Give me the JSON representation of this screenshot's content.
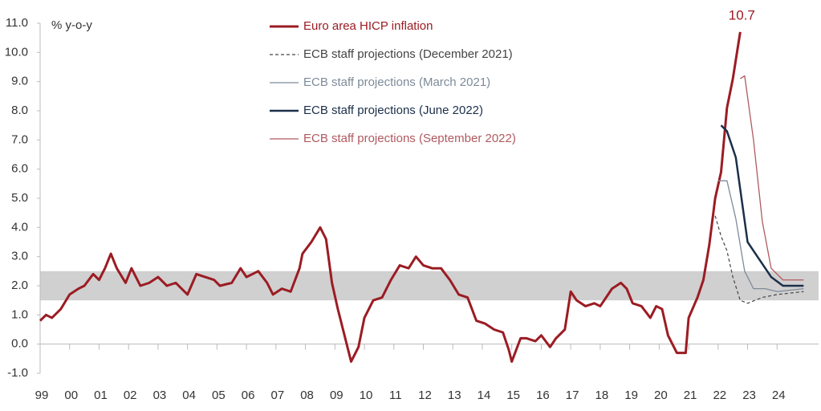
{
  "chart_data": {
    "type": "line",
    "y_label": "% y-o-y",
    "xlim": [
      1999,
      2025
    ],
    "ylim": [
      -1,
      11
    ],
    "xticks": [
      {
        "value": 1999,
        "label": "99"
      },
      {
        "value": 2000,
        "label": "00"
      },
      {
        "value": 2001,
        "label": "01"
      },
      {
        "value": 2002,
        "label": "02"
      },
      {
        "value": 2003,
        "label": "03"
      },
      {
        "value": 2004,
        "label": "04"
      },
      {
        "value": 2005,
        "label": "05"
      },
      {
        "value": 2006,
        "label": "06"
      },
      {
        "value": 2007,
        "label": "07"
      },
      {
        "value": 2008,
        "label": "08"
      },
      {
        "value": 2009,
        "label": "09"
      },
      {
        "value": 2010,
        "label": "10"
      },
      {
        "value": 2011,
        "label": "11"
      },
      {
        "value": 2012,
        "label": "12"
      },
      {
        "value": 2013,
        "label": "13"
      },
      {
        "value": 2014,
        "label": "14"
      },
      {
        "value": 2015,
        "label": "15"
      },
      {
        "value": 2016,
        "label": "16"
      },
      {
        "value": 2017,
        "label": "17"
      },
      {
        "value": 2018,
        "label": "18"
      },
      {
        "value": 2019,
        "label": "19"
      },
      {
        "value": 2020,
        "label": "20"
      },
      {
        "value": 2021,
        "label": "21"
      },
      {
        "value": 2022,
        "label": "22"
      },
      {
        "value": 2023,
        "label": "23"
      },
      {
        "value": 2024,
        "label": "24"
      }
    ],
    "yticks": [
      {
        "value": -1,
        "label": "-1.0"
      },
      {
        "value": 0,
        "label": "0.0"
      },
      {
        "value": 1,
        "label": "1.0"
      },
      {
        "value": 2,
        "label": "2.0"
      },
      {
        "value": 3,
        "label": "3.0"
      },
      {
        "value": 4,
        "label": "4.0"
      },
      {
        "value": 5,
        "label": "5.0"
      },
      {
        "value": 6,
        "label": "6.0"
      },
      {
        "value": 7,
        "label": "7.0"
      },
      {
        "value": 8,
        "label": "8.0"
      },
      {
        "value": 9,
        "label": "9.0"
      },
      {
        "value": 10,
        "label": "10.0"
      },
      {
        "value": 11,
        "label": "11.0"
      }
    ],
    "shaded_band": [
      1.5,
      2.5
    ],
    "band_color": "#d0d0d0",
    "series": [
      {
        "name": "Euro area HICP inflation",
        "color": "#9b1c23",
        "width": 3,
        "dash": "none",
        "x": [
          1999.0,
          1999.2,
          1999.4,
          1999.7,
          2000.0,
          2000.3,
          2000.5,
          2000.8,
          2001.0,
          2001.2,
          2001.4,
          2001.6,
          2001.9,
          2002.1,
          2002.4,
          2002.7,
          2003.0,
          2003.3,
          2003.6,
          2004.0,
          2004.3,
          2004.6,
          2004.9,
          2005.1,
          2005.5,
          2005.8,
          2006.0,
          2006.4,
          2006.7,
          2006.9,
          2007.2,
          2007.5,
          2007.8,
          2007.9,
          2008.2,
          2008.5,
          2008.7,
          2008.9,
          2009.1,
          2009.4,
          2009.55,
          2009.8,
          2010.0,
          2010.3,
          2010.6,
          2010.9,
          2011.2,
          2011.5,
          2011.75,
          2012.0,
          2012.3,
          2012.6,
          2012.9,
          2013.2,
          2013.5,
          2013.8,
          2014.1,
          2014.4,
          2014.7,
          2014.9,
          2015.0,
          2015.3,
          2015.5,
          2015.8,
          2016.0,
          2016.3,
          2016.5,
          2016.8,
          2017.0,
          2017.2,
          2017.5,
          2017.8,
          2018.0,
          2018.4,
          2018.7,
          2018.9,
          2019.1,
          2019.4,
          2019.7,
          2019.9,
          2020.1,
          2020.3,
          2020.6,
          2020.9,
          2021.0,
          2021.3,
          2021.5,
          2021.7,
          2021.9,
          2022.1,
          2022.3,
          2022.5,
          2022.75
        ],
        "values": [
          0.8,
          1.0,
          0.9,
          1.2,
          1.7,
          1.9,
          2.0,
          2.4,
          2.2,
          2.6,
          3.1,
          2.6,
          2.1,
          2.6,
          2.0,
          2.1,
          2.3,
          2.0,
          2.1,
          1.7,
          2.4,
          2.3,
          2.2,
          2.0,
          2.1,
          2.6,
          2.3,
          2.5,
          2.1,
          1.7,
          1.9,
          1.8,
          2.6,
          3.1,
          3.5,
          4.0,
          3.6,
          2.1,
          1.2,
          0.0,
          -0.6,
          -0.1,
          0.9,
          1.5,
          1.6,
          2.2,
          2.7,
          2.6,
          3.0,
          2.7,
          2.6,
          2.6,
          2.2,
          1.7,
          1.6,
          0.8,
          0.7,
          0.5,
          0.4,
          -0.2,
          -0.6,
          0.2,
          0.2,
          0.1,
          0.3,
          -0.1,
          0.2,
          0.5,
          1.8,
          1.5,
          1.3,
          1.4,
          1.3,
          1.9,
          2.1,
          1.9,
          1.4,
          1.3,
          0.9,
          1.3,
          1.2,
          0.3,
          -0.3,
          -0.3,
          0.9,
          1.6,
          2.2,
          3.4,
          5.0,
          5.9,
          8.1,
          9.1,
          10.7
        ]
      },
      {
        "name": "ECB staff projections (December 2021)",
        "color": "#444444",
        "width": 1.2,
        "dash": "4 3",
        "x": [
          2021.9,
          2022.1,
          2022.3,
          2022.5,
          2022.75,
          2023.0,
          2023.5,
          2024.0,
          2024.9
        ],
        "values": [
          4.4,
          3.7,
          3.2,
          2.3,
          1.5,
          1.4,
          1.6,
          1.7,
          1.8
        ]
      },
      {
        "name": "ECB staff projections (March 2021)",
        "color": "#7d8b99",
        "width": 1.3,
        "dash": "none",
        "x": [
          2022.0,
          2022.3,
          2022.6,
          2022.9,
          2023.2,
          2023.6,
          2024.0,
          2024.9
        ],
        "values": [
          5.6,
          5.6,
          4.3,
          2.5,
          1.9,
          1.9,
          1.8,
          1.9
        ]
      },
      {
        "name": "ECB staff projections (June 2022)",
        "color": "#1b2f4a",
        "width": 2.5,
        "dash": "none",
        "x": [
          2022.1,
          2022.3,
          2022.6,
          2023.0,
          2023.4,
          2023.8,
          2024.2,
          2024.9
        ],
        "values": [
          7.5,
          7.3,
          6.4,
          3.5,
          2.9,
          2.3,
          2.0,
          2.0
        ]
      },
      {
        "name": "ECB staff projections (September 2022)",
        "color": "#b05a60",
        "width": 1.3,
        "dash": "none",
        "x": [
          2022.75,
          2022.9,
          2023.2,
          2023.5,
          2023.8,
          2024.2,
          2024.9
        ],
        "values": [
          9.1,
          9.2,
          7.0,
          4.2,
          2.6,
          2.2,
          2.2
        ]
      }
    ]
  }
}
